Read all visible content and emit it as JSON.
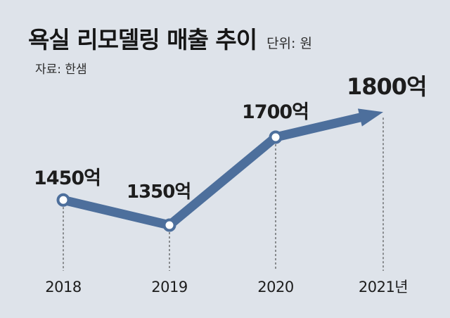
{
  "header": {
    "title": "욕실 리모델링 매출 추이",
    "unit": "단위: 원",
    "source": "자료: 한샘"
  },
  "chart_data": {
    "type": "line",
    "title": "욕실 리모델링 매출 추이",
    "unit": "단위: 원",
    "source": "자료: 한샘",
    "categories": [
      "2018",
      "2019",
      "2020",
      "2021년"
    ],
    "values": [
      1450,
      1350,
      1700,
      1800
    ],
    "data_labels": [
      "1450억",
      "1350억",
      "1700억",
      "1800억"
    ],
    "last_point_arrow": true,
    "grid": false,
    "line_color": "#4d6f9c",
    "marker_fill": "#ffffff"
  }
}
